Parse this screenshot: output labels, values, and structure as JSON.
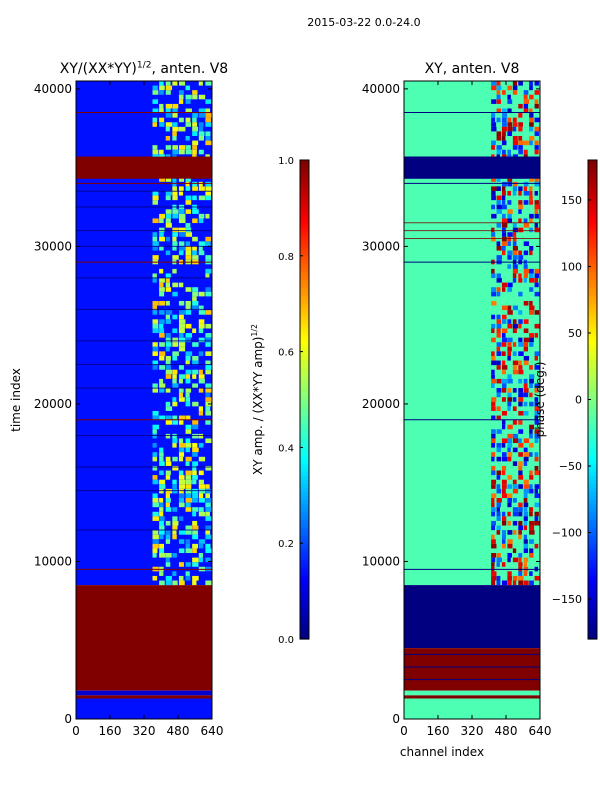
{
  "figure_title": "2015-03-22 0.0-24.0",
  "colors": {
    "jet_dark_blue": "#00007f",
    "jet_blue": "#0000ff",
    "jet_cyan": "#00ffff",
    "jet_light_green": "#7fff7f",
    "jet_yellow": "#ffff00",
    "jet_red": "#ff0000",
    "jet_dark_red": "#7f0000"
  },
  "chart_data": [
    {
      "type": "heatmap",
      "title_main": "XY/(XX*YY)",
      "title_sup": "1/2",
      "title_tail": ", anten. V8",
      "xlabel": "",
      "ylabel": "time index",
      "xlim": [
        0,
        640
      ],
      "ylim": [
        0,
        40500
      ],
      "x_ticks": [
        0,
        160,
        320,
        480,
        640
      ],
      "x_tick_labels": [
        "0",
        "160",
        "320",
        "480",
        "640"
      ],
      "y_ticks": [
        0,
        10000,
        20000,
        30000,
        40000
      ],
      "y_tick_labels": [
        "0",
        "10000",
        "20000",
        "30000",
        "40000"
      ],
      "colormap": "jet",
      "colorbar": {
        "label_main": "XY amp. / (XX*YY amp)",
        "label_sup": "1/2",
        "range": [
          0.0,
          1.0
        ],
        "ticks": [
          0.0,
          0.2,
          0.4,
          0.6,
          0.8,
          1.0
        ],
        "tick_labels": [
          "0.0",
          "0.2",
          "0.4",
          "0.6",
          "0.8",
          "1.0"
        ]
      },
      "bands": [
        {
          "y0": 8500,
          "y1": 40500,
          "value": 0.14
        },
        {
          "y0": 1800,
          "y1": 8500,
          "value": 1.0
        },
        {
          "y0": 1500,
          "y1": 1800,
          "value": 0.08
        },
        {
          "y0": 1300,
          "y1": 1500,
          "value": 1.0
        },
        {
          "y0": 0,
          "y1": 1300,
          "value": 0.14
        },
        {
          "y0": 34300,
          "y1": 35700,
          "value": 1.0
        }
      ],
      "active_channel_region": [
        360,
        640
      ],
      "active_value": 0.45,
      "flag_lines": [
        9500,
        19000,
        29000,
        34000,
        38500
      ],
      "flag_value": 1.0,
      "dark_lines": [
        12000,
        14500,
        16000,
        18000,
        21000,
        22500,
        24000,
        26000,
        28000,
        30000,
        31000,
        32500,
        33500
      ],
      "dark_value": 0.0
    },
    {
      "type": "heatmap",
      "title_main": "XY, anten. V8",
      "xlabel": "channel index",
      "ylabel": "",
      "xlim": [
        0,
        640
      ],
      "ylim": [
        0,
        40500
      ],
      "x_ticks": [
        0,
        160,
        320,
        480,
        640
      ],
      "x_tick_labels": [
        "0",
        "160",
        "320",
        "480",
        "640"
      ],
      "y_ticks": [
        0,
        10000,
        20000,
        30000,
        40000
      ],
      "y_tick_labels": [
        "0",
        "10000",
        "20000",
        "30000",
        "40000"
      ],
      "colormap": "jet",
      "colorbar": {
        "label_main": "phase (deg.)",
        "range": [
          -180,
          180
        ],
        "ticks": [
          -150,
          -100,
          -50,
          0,
          50,
          100,
          150
        ],
        "tick_labels": [
          "−150",
          "−100",
          "−50",
          "0",
          "50",
          "100",
          "150"
        ]
      },
      "bands": [
        {
          "y0": 8500,
          "y1": 40500,
          "value": 0.45
        },
        {
          "y0": 4500,
          "y1": 8500,
          "value": 0.0
        },
        {
          "y0": 1800,
          "y1": 4500,
          "value": 1.0
        },
        {
          "y0": 1500,
          "y1": 1800,
          "value": 0.45
        },
        {
          "y0": 1300,
          "y1": 1500,
          "value": 1.0
        },
        {
          "y0": 0,
          "y1": 1300,
          "value": 0.45
        },
        {
          "y0": 34300,
          "y1": 35700,
          "value": 0.0
        }
      ],
      "active_channel_region": [
        410,
        640
      ],
      "active_value": 0.85,
      "flag_lines": [
        2500,
        3300,
        4100,
        9500,
        19000,
        29000,
        34000,
        38500
      ],
      "flag_value": 0.0,
      "dark_lines": [
        30500,
        31000,
        31500
      ],
      "dark_value": 1.0
    }
  ]
}
